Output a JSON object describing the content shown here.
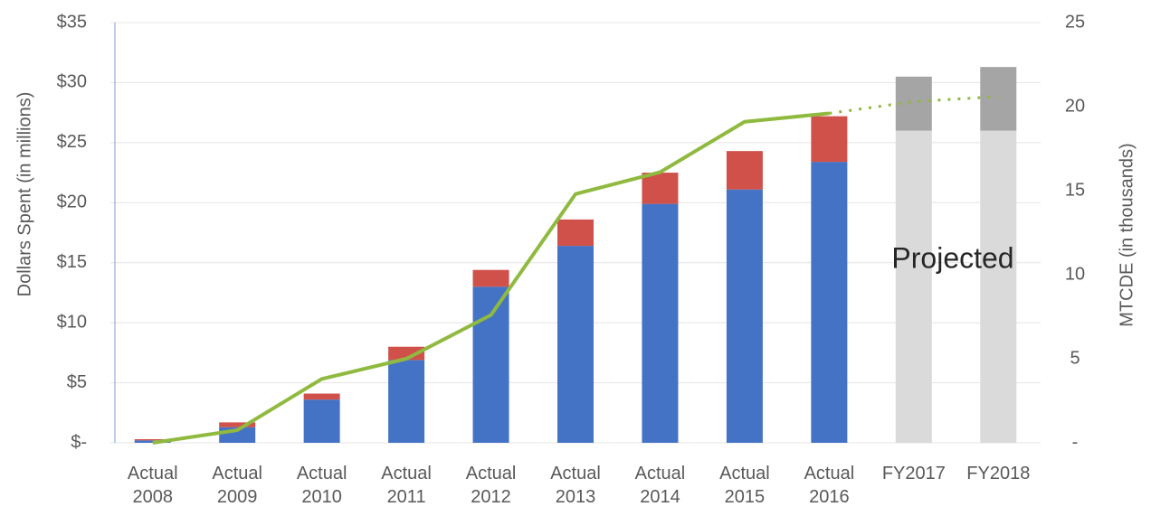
{
  "chart_data": {
    "type": "bar",
    "y_label": "Dollars Spent (in millions)",
    "y2_label": "MTCDE (in thousands)",
    "annotation": "Projected",
    "categories": [
      "Actual 2008",
      "Actual 2009",
      "Actual 2010",
      "Actual 2011",
      "Actual 2012",
      "Actual 2013",
      "Actual 2014",
      "Actual 2015",
      "Actual 2016",
      "FY2017",
      "FY2018"
    ],
    "series": [
      {
        "color": "#4472c4",
        "values": [
          0.2,
          1.3,
          3.6,
          6.9,
          13.0,
          16.4,
          19.9,
          21.1,
          23.4,
          null,
          null
        ]
      },
      {
        "color": "#d0504a",
        "values": [
          0.1,
          0.4,
          0.5,
          1.1,
          1.4,
          2.2,
          2.6,
          3.2,
          3.8,
          null,
          null
        ]
      },
      {
        "color": "#dadada",
        "values": [
          null,
          null,
          null,
          null,
          null,
          null,
          null,
          null,
          null,
          26.0,
          26.0
        ]
      },
      {
        "color": "#a5a5a5",
        "values": [
          null,
          null,
          null,
          null,
          null,
          null,
          null,
          null,
          null,
          4.5,
          5.3
        ]
      },
      {
        "type": "line",
        "axis": "y2",
        "color": "#8fba3f",
        "values": [
          0,
          0.75,
          3.8,
          5.0,
          7.6,
          14.8,
          16.1,
          19.1,
          19.6,
          null,
          null
        ]
      },
      {
        "type": "line",
        "axis": "y2",
        "dashed": true,
        "color": "#8fba3f",
        "values": [
          null,
          null,
          null,
          null,
          null,
          null,
          null,
          null,
          19.6,
          20.3,
          20.6
        ]
      }
    ],
    "ylim": [
      0,
      35
    ],
    "yticks": [
      {
        "value": 0,
        "label": "$-"
      },
      {
        "value": 5,
        "label": "$5"
      },
      {
        "value": 10,
        "label": "$10"
      },
      {
        "value": 15,
        "label": "$15"
      },
      {
        "value": 20,
        "label": "$20"
      },
      {
        "value": 25,
        "label": "$25"
      },
      {
        "value": 30,
        "label": "$30"
      },
      {
        "value": 35,
        "label": "$35"
      }
    ],
    "y2lim": [
      0,
      25
    ],
    "y2ticks": [
      {
        "value": 0,
        "label": "-"
      },
      5,
      10,
      15,
      20,
      25
    ],
    "grid": true
  }
}
